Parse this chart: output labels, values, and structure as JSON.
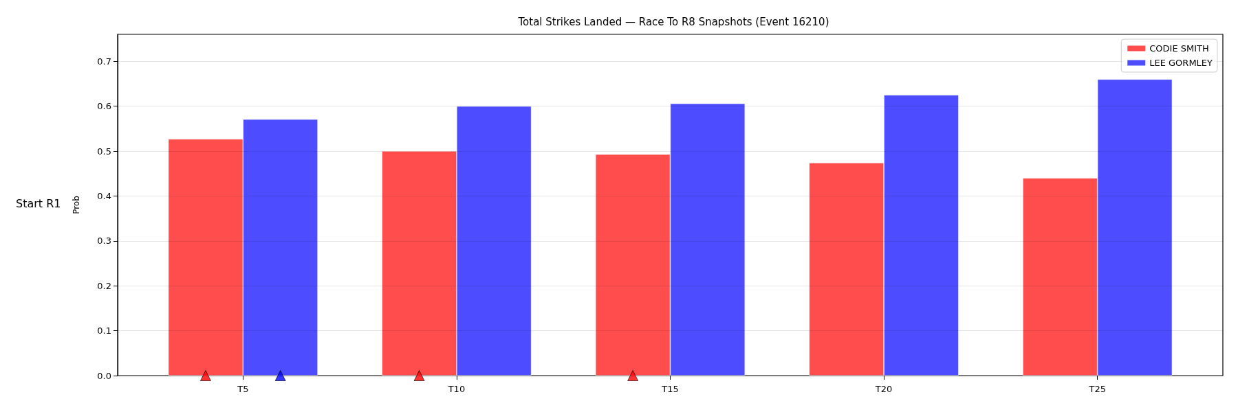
{
  "chart_data": {
    "type": "bar",
    "title": "Total Strikes Landed — Race To R8 Snapshots (Event 16210)",
    "ylabel": "Prob",
    "annotations": [
      "Start R1"
    ],
    "categories": [
      "T5",
      "T10",
      "T15",
      "T20",
      "T25"
    ],
    "series": [
      {
        "name": "CODIE SMITH",
        "color": "#ff4d4d",
        "values": [
          0.527,
          0.5,
          0.493,
          0.474,
          0.44
        ]
      },
      {
        "name": "LEE GORMLEY",
        "color": "#4d4dff",
        "values": [
          0.571,
          0.6,
          0.606,
          0.625,
          0.66
        ]
      },
      {
        "type": "scatter",
        "color": "#ff0000",
        "x": [
          "T5",
          "T10",
          "T15"
        ],
        "values": [
          0,
          0,
          0
        ],
        "marker": "triangle"
      },
      {
        "type": "scatter",
        "color": "#0000ff",
        "x": [
          "T5"
        ],
        "values": [
          0
        ],
        "marker": "triangle"
      }
    ],
    "ylim": [
      0,
      0.76
    ],
    "yticks": [
      {
        "value": 0,
        "label": "0.0"
      },
      0.1,
      0.2,
      0.3,
      0.4,
      0.5,
      0.6,
      0.7
    ],
    "grid": "y",
    "legend": "top right"
  }
}
